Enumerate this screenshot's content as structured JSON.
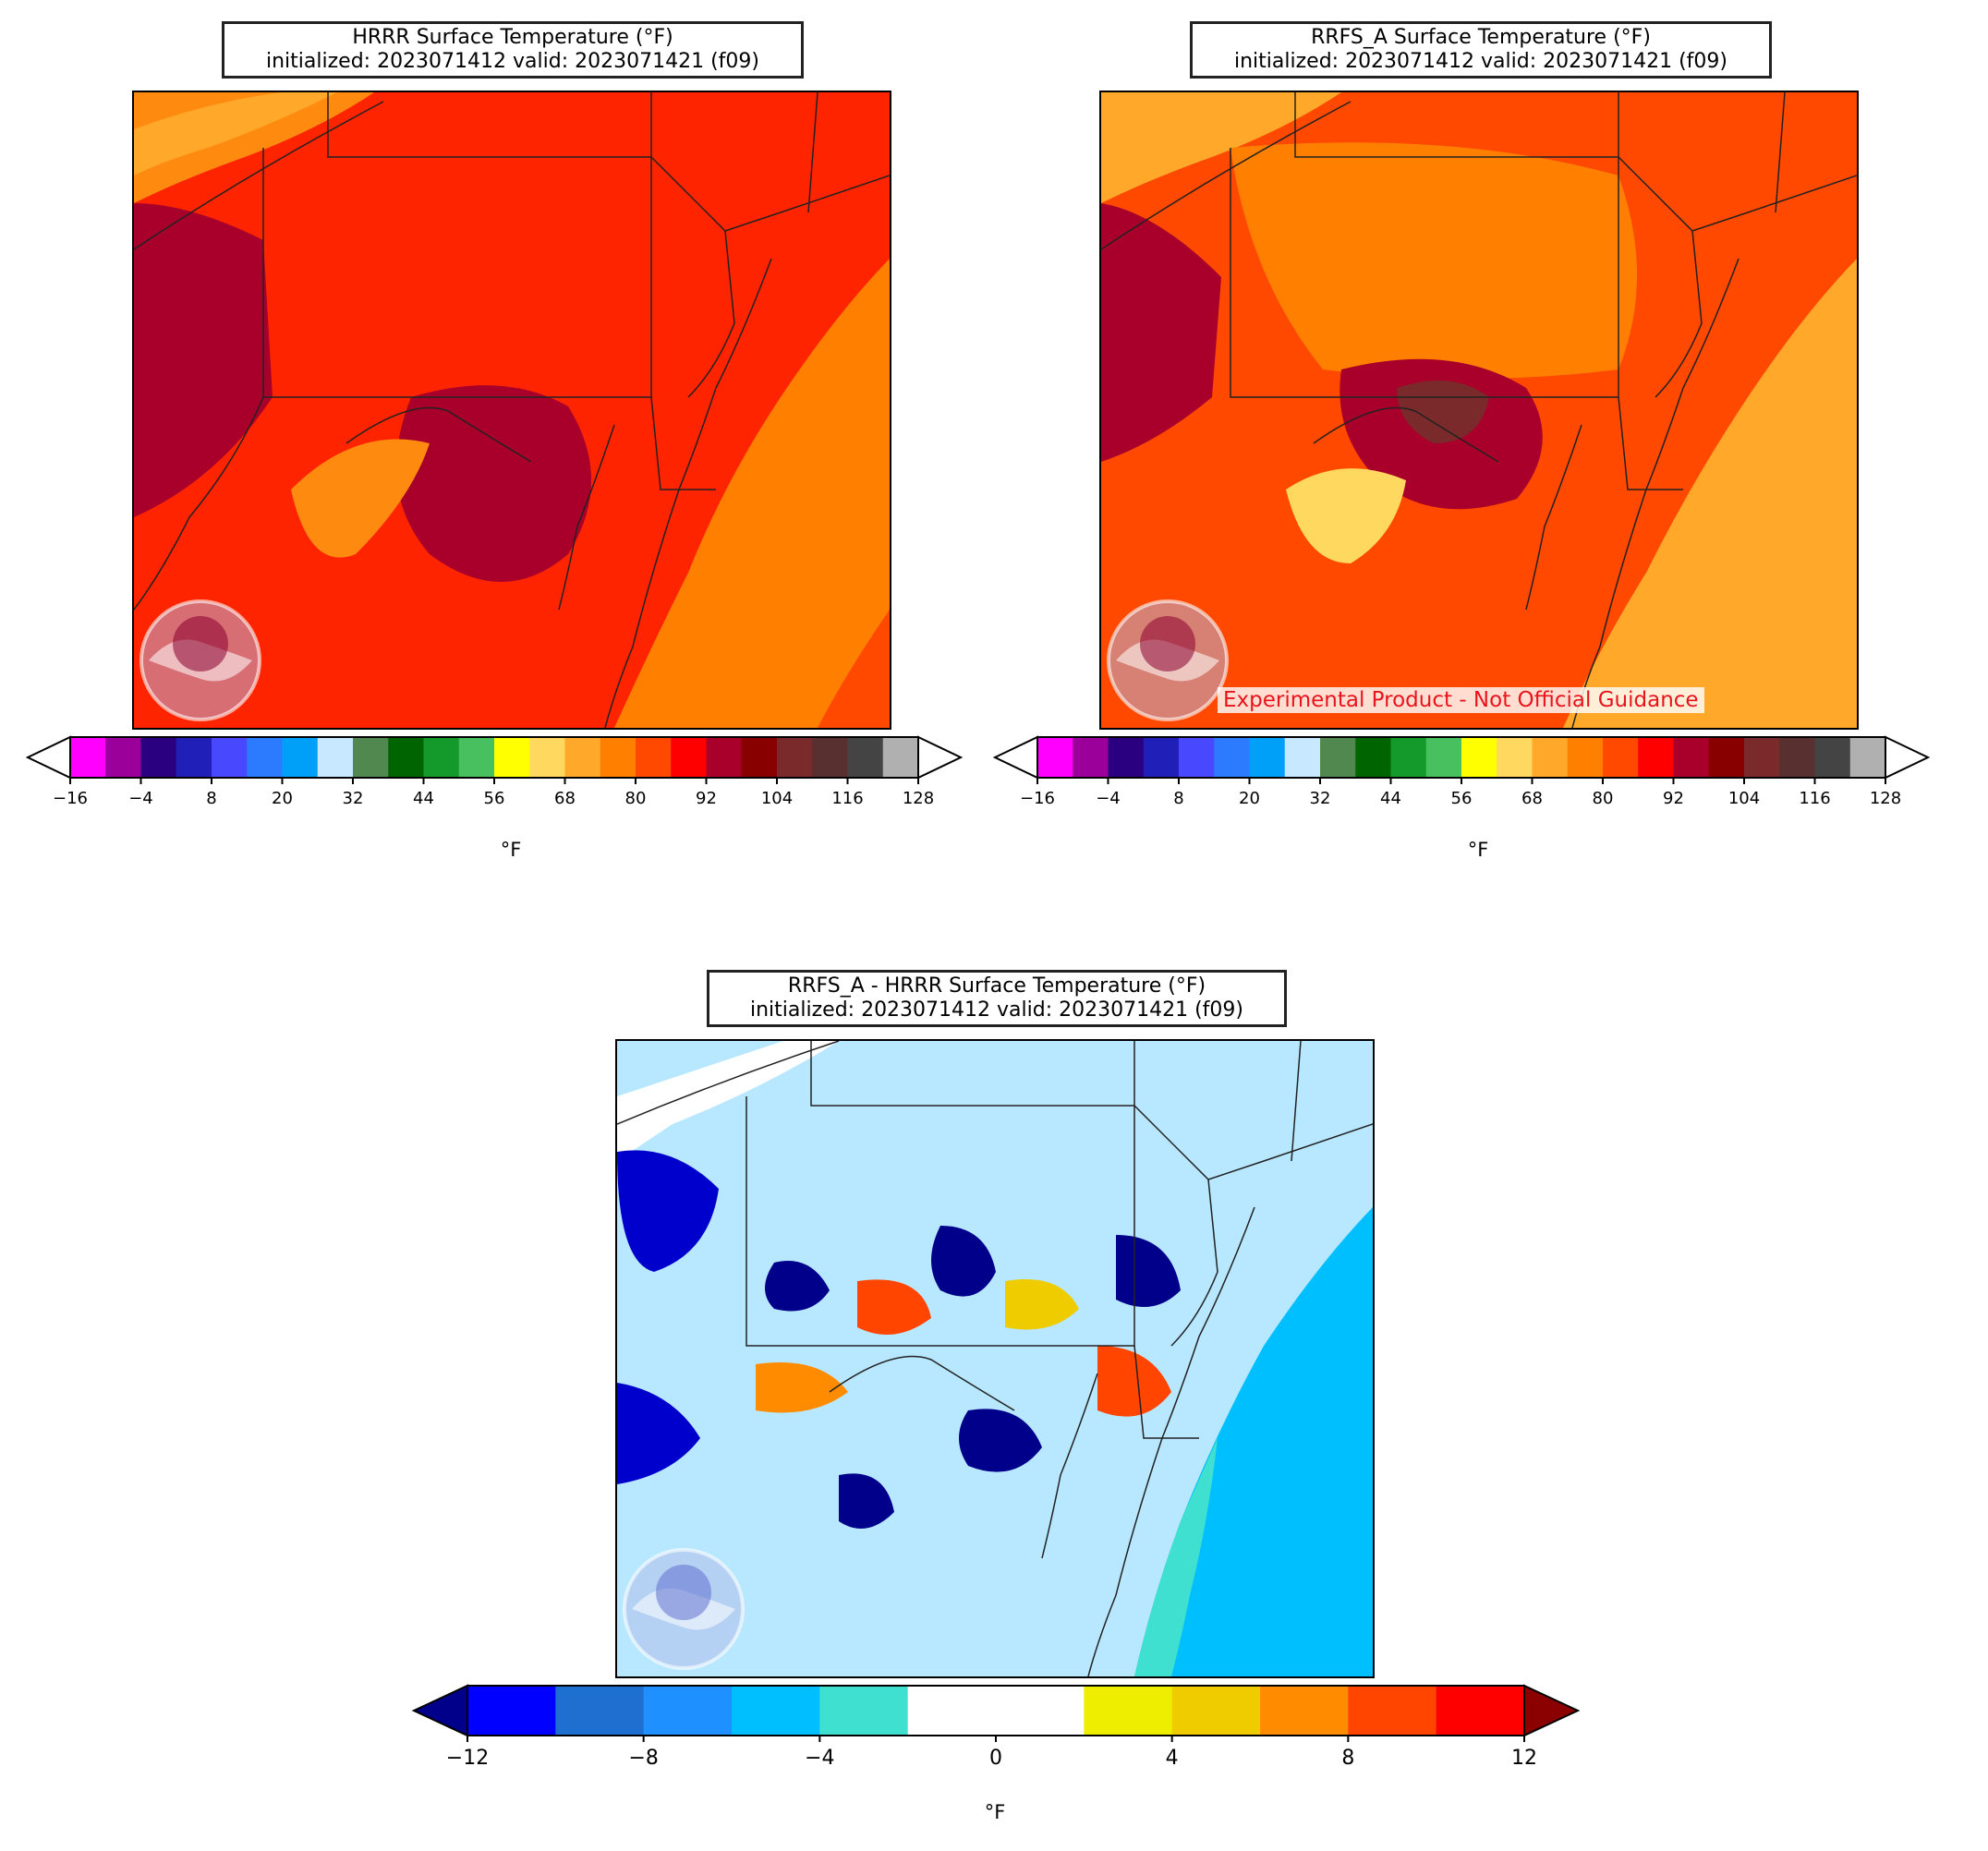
{
  "panels": [
    {
      "id": "hrrr",
      "title_line1": "HRRR Surface Temperature (°F)",
      "title_line2": "initialized: 2023071412 valid: 2023071421 (f09)",
      "logo": "noaa-logo",
      "colorbar": {
        "unit": "°F",
        "ticks": [
          "−16",
          "−4",
          "8",
          "20",
          "32",
          "44",
          "56",
          "68",
          "80",
          "92",
          "104",
          "116",
          "128"
        ]
      }
    },
    {
      "id": "rrfs",
      "title_line1": "RRFS_A Surface Temperature (°F)",
      "title_line2": "initialized: 2023071412 valid: 2023071421 (f09)",
      "logo": "noaa-logo",
      "watermark": "Experimental Product - Not Official Guidance",
      "colorbar": {
        "unit": "°F",
        "ticks": [
          "−16",
          "−4",
          "8",
          "20",
          "32",
          "44",
          "56",
          "68",
          "80",
          "92",
          "104",
          "116",
          "128"
        ]
      }
    },
    {
      "id": "diff",
      "title_line1": "RRFS_A - HRRR Surface Temperature (°F)",
      "title_line2": "initialized: 2023071412 valid: 2023071421 (f09)",
      "logo": "noaa-logo",
      "colorbar": {
        "unit": "°F",
        "ticks": [
          "−12",
          "−8",
          "−4",
          "0",
          "4",
          "8",
          "12"
        ]
      }
    }
  ],
  "temperature_colors": [
    "#ff00ff",
    "#9b009b",
    "#2b0080",
    "#2020b8",
    "#4848ff",
    "#2c7bff",
    "#00a0f8",
    "#c8e8ff",
    "#508850",
    "#006400",
    "#139a2a",
    "#48c060",
    "#ffff00",
    "#ffd860",
    "#ffa82a",
    "#ff8000",
    "#ff4800",
    "#ff0000",
    "#a8002a",
    "#880000",
    "#7a2a2a",
    "#583030",
    "#444444",
    "#b0b0b0"
  ],
  "temperature_extend_min": "#ffffff",
  "temperature_extend_max": "#ffffff",
  "difference_colors": [
    "#0000ff",
    "#1f6fd0",
    "#1e90ff",
    "#00bfff",
    "#40e0d0",
    "#ffffff",
    "#ffffff",
    "#eeee00",
    "#eecc00",
    "#ff8c00",
    "#ff4500",
    "#ff0000"
  ],
  "difference_extend_min": "#00008b",
  "difference_extend_max": "#8b0000",
  "map_features": [
    "state-borders",
    "coastlines",
    "great-lakes"
  ]
}
